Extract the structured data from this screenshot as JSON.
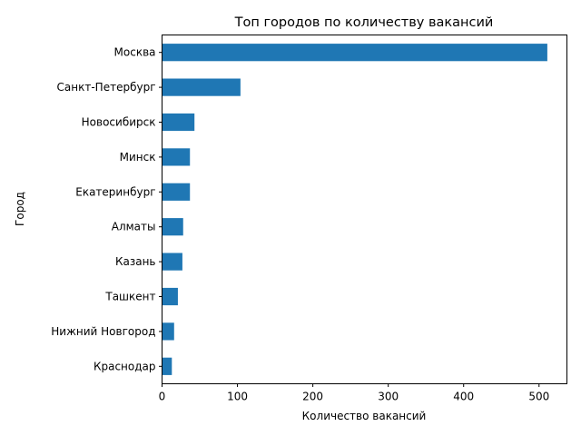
{
  "chart_data": {
    "type": "bar",
    "orientation": "horizontal",
    "title": "Топ городов по количеству вакансий",
    "xlabel": "Количество вакансий",
    "ylabel": "Город",
    "categories": [
      "Москва",
      "Санкт-Петербург",
      "Новосибирск",
      "Минск",
      "Екатеринбург",
      "Алматы",
      "Казань",
      "Ташкент",
      "Нижний Новгород",
      "Краснодар"
    ],
    "values": [
      511,
      104,
      43,
      37,
      37,
      28,
      27,
      21,
      16,
      13
    ],
    "xlim": [
      0,
      537
    ],
    "xticks": [
      0,
      100,
      200,
      300,
      400,
      500
    ],
    "grid": false,
    "bar_color": "#1f77b4"
  }
}
